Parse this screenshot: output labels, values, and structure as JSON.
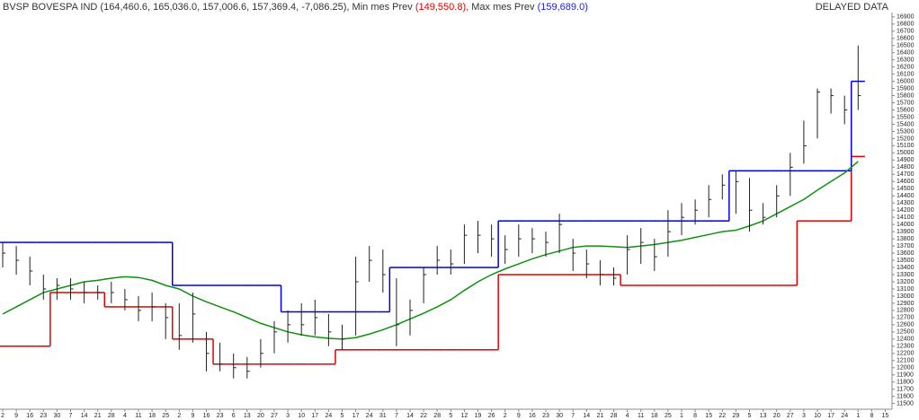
{
  "chart_data": {
    "type": "ohlc",
    "title": "BVSP BOVESPA IND",
    "quote": "(164,460.6, 165,036.0, 157,006.6, 157,369.4, -7,086.25),",
    "status": "DELAYED DATA",
    "categories": [
      "2",
      "9",
      "16",
      "23",
      "30",
      "7",
      "14",
      "21",
      "28",
      "4",
      "11",
      "18",
      "25",
      "2",
      "9",
      "16",
      "23",
      "6",
      "13",
      "20",
      "27",
      "3",
      "10",
      "17",
      "24",
      "5",
      "17",
      "24",
      "31",
      "7",
      "14",
      "22",
      "28",
      "5",
      "12",
      "19",
      "26",
      "2",
      "9",
      "16",
      "23",
      "30",
      "7",
      "14",
      "21",
      "28",
      "4",
      "11",
      "18",
      "25",
      "1",
      "8",
      "15",
      "22",
      "29",
      "5",
      "13",
      "20",
      "27",
      "3",
      "10",
      "17",
      "24",
      "1",
      "8",
      "15"
    ],
    "high": [
      13750,
      13700,
      13550,
      13300,
      13250,
      13250,
      13200,
      13150,
      13200,
      13100,
      13000,
      13050,
      12900,
      12900,
      13050,
      12500,
      12350,
      12200,
      12150,
      12400,
      12650,
      12800,
      12900,
      12950,
      12750,
      12600,
      13550,
      13700,
      13650,
      13250,
      12950,
      13400,
      13700,
      13650,
      14000,
      14050,
      14000,
      13850,
      14000,
      13950,
      13900,
      14150,
      13800,
      13650,
      13500,
      13400,
      13850,
      13950,
      13800,
      14200,
      14300,
      14350,
      14550,
      14700,
      14750,
      14650,
      14300,
      14550,
      15000,
      15450,
      15900,
      15900,
      15800,
      16500,
      null,
      null
    ],
    "low": [
      13400,
      13300,
      13150,
      12950,
      12950,
      12950,
      12900,
      12950,
      12900,
      12800,
      12650,
      12650,
      12400,
      12250,
      12350,
      11950,
      11950,
      11850,
      11850,
      12000,
      12200,
      12350,
      12450,
      12450,
      12300,
      12250,
      12450,
      13200,
      13050,
      12300,
      12450,
      12900,
      13300,
      13300,
      13450,
      13600,
      13550,
      13450,
      13550,
      13600,
      13550,
      13600,
      13350,
      13250,
      13150,
      13150,
      13300,
      13450,
      13350,
      13550,
      13850,
      14000,
      14100,
      14350,
      14150,
      13900,
      14000,
      14100,
      14400,
      14850,
      15200,
      15550,
      15400,
      15600,
      null,
      null
    ],
    "close": [
      13600,
      13500,
      13350,
      13100,
      13150,
      13100,
      13050,
      13050,
      13050,
      12950,
      12800,
      12850,
      12700,
      12450,
      12750,
      12200,
      12050,
      12000,
      11950,
      12200,
      12500,
      12600,
      12600,
      12700,
      12500,
      12400,
      13200,
      13500,
      13300,
      12600,
      12800,
      13300,
      13500,
      13450,
      13850,
      13850,
      13800,
      13650,
      13800,
      13800,
      13750,
      14000,
      13600,
      13450,
      13300,
      13250,
      13650,
      13750,
      13550,
      13900,
      14100,
      14200,
      14350,
      14550,
      14600,
      14200,
      14100,
      14400,
      14800,
      15100,
      15850,
      15800,
      15600,
      15800,
      null,
      null
    ],
    "series": [
      {
        "name": "Min mes Prev",
        "legend_value": "(149,550.8),",
        "color": "#e00000",
        "style": "step",
        "values": [
          12300,
          12300,
          12300,
          12300,
          13050,
          13050,
          13050,
          13050,
          12850,
          12850,
          12850,
          12850,
          12850,
          12400,
          12400,
          12400,
          12050,
          12050,
          12050,
          12050,
          12050,
          12050,
          12050,
          12050,
          12050,
          12250,
          12250,
          12250,
          12250,
          12250,
          12250,
          12250,
          12250,
          12250,
          12250,
          12250,
          12250,
          13300,
          13300,
          13300,
          13300,
          13300,
          13300,
          13300,
          13300,
          13300,
          13150,
          13150,
          13150,
          13150,
          13150,
          13150,
          13150,
          13150,
          13150,
          13150,
          13150,
          13150,
          13150,
          14050,
          14050,
          14050,
          14050,
          14950,
          null,
          null
        ]
      },
      {
        "name": "Max mes Prev",
        "legend_value": "(159,689.0)",
        "color": "#0000e0",
        "style": "step",
        "values": [
          13750,
          13750,
          13750,
          13750,
          13750,
          13750,
          13750,
          13750,
          13750,
          13750,
          13750,
          13750,
          13750,
          13150,
          13150,
          13150,
          13150,
          13150,
          13150,
          13150,
          13150,
          12780,
          12780,
          12780,
          12780,
          12780,
          12780,
          12780,
          12780,
          13400,
          13400,
          13400,
          13400,
          13400,
          13400,
          13400,
          13400,
          14050,
          14050,
          14050,
          14050,
          14050,
          14050,
          14050,
          14050,
          14050,
          14050,
          14050,
          14050,
          14050,
          14050,
          14050,
          14050,
          14050,
          14750,
          14750,
          14750,
          14750,
          14750,
          14750,
          14750,
          14750,
          14750,
          16000,
          null,
          null
        ]
      },
      {
        "color": "#109010",
        "style": "line",
        "values": [
          12750,
          12850,
          12950,
          13050,
          13100,
          13150,
          13200,
          13220,
          13250,
          13270,
          13260,
          13220,
          13150,
          13100,
          13000,
          12920,
          12850,
          12780,
          12700,
          12620,
          12560,
          12500,
          12460,
          12430,
          12410,
          12400,
          12420,
          12470,
          12530,
          12600,
          12680,
          12760,
          12850,
          12950,
          13080,
          13200,
          13300,
          13380,
          13450,
          13520,
          13580,
          13630,
          13680,
          13700,
          13700,
          13690,
          13680,
          13700,
          13720,
          13750,
          13780,
          13820,
          13860,
          13900,
          13920,
          13980,
          14050,
          14150,
          14250,
          14350,
          14480,
          14600,
          14720,
          14880,
          null,
          null
        ]
      }
    ],
    "price_color": "#222222",
    "ylim": [
      11420,
      16960
    ],
    "yticks": [
      11500,
      11600,
      11700,
      11800,
      11900,
      12000,
      12100,
      12200,
      12300,
      12400,
      12500,
      12600,
      12700,
      12800,
      12900,
      13000,
      13100,
      13200,
      13300,
      13400,
      13500,
      13600,
      13700,
      13800,
      13900,
      14000,
      14100,
      14200,
      14300,
      14400,
      14500,
      14600,
      14700,
      14800,
      14900,
      15000,
      15100,
      15200,
      15300,
      15400,
      15500,
      15600,
      15700,
      15800,
      15900,
      16000,
      16100,
      16200,
      16300,
      16400,
      16500,
      16600,
      16700,
      16800,
      16900
    ]
  }
}
